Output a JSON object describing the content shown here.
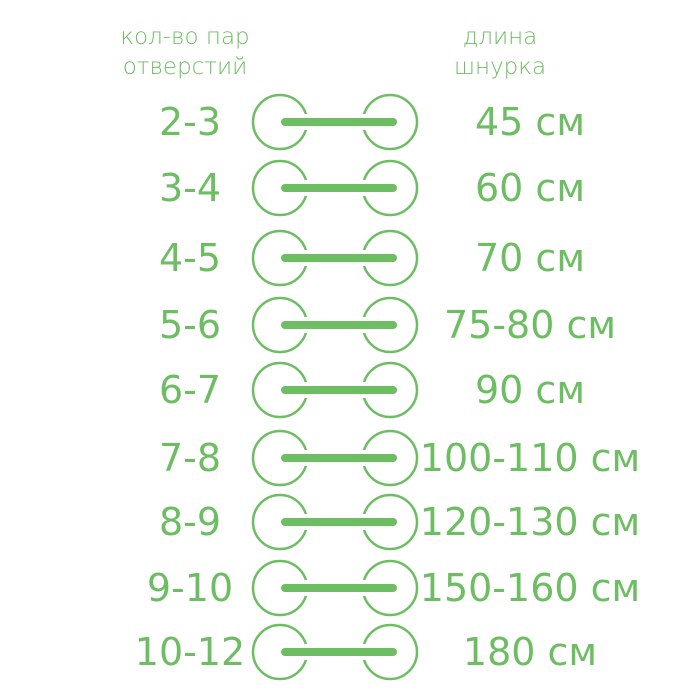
{
  "header": {
    "left": [
      "кол-во пар",
      "отверстий"
    ],
    "right": [
      "длина",
      "шнурка"
    ]
  },
  "color": "#6dbd62",
  "rows": [
    {
      "holes": "2-3",
      "length": "45 см"
    },
    {
      "holes": "3-4",
      "length": "60 см"
    },
    {
      "holes": "4-5",
      "length": "70 см"
    },
    {
      "holes": "5-6",
      "length": "75-80 см"
    },
    {
      "holes": "6-7",
      "length": "90 см"
    },
    {
      "holes": "7-8",
      "length": "100-110 см"
    },
    {
      "holes": "8-9",
      "length": "120-130 см"
    },
    {
      "holes": "9-10",
      "length": "150-160 см"
    },
    {
      "holes": "10-12",
      "length": "180 см"
    }
  ]
}
